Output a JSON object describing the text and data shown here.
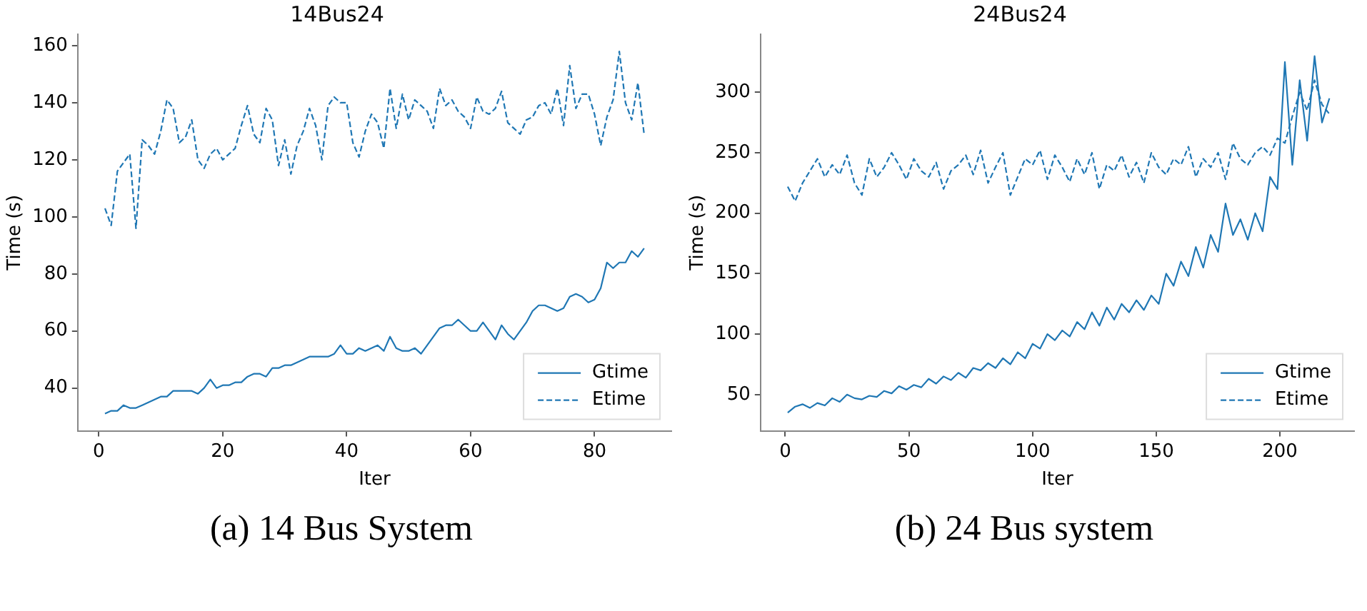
{
  "chart_data": [
    {
      "type": "line",
      "title": "14Bus24",
      "xlabel": "Iter",
      "ylabel": "Time (s)",
      "annotations": [
        "(a) 14 Bus System"
      ],
      "x": [
        1,
        2,
        3,
        4,
        5,
        6,
        7,
        8,
        9,
        10,
        11,
        12,
        13,
        14,
        15,
        16,
        17,
        18,
        19,
        20,
        21,
        22,
        23,
        24,
        25,
        26,
        27,
        28,
        29,
        30,
        31,
        32,
        33,
        34,
        35,
        36,
        37,
        38,
        39,
        40,
        41,
        42,
        43,
        44,
        45,
        46,
        47,
        48,
        49,
        50,
        51,
        52,
        53,
        54,
        55,
        56,
        57,
        58,
        59,
        60,
        61,
        62,
        63,
        64,
        65,
        66,
        67,
        68,
        69,
        70,
        71,
        72,
        73,
        74,
        75,
        76,
        77,
        78,
        79,
        80,
        81,
        82,
        83,
        84,
        85,
        86,
        87,
        88
      ],
      "series": [
        {
          "name": "Gtime",
          "color": "#1f77b4",
          "line_style": "solid",
          "values": [
            31,
            32,
            32,
            34,
            33,
            33,
            34,
            35,
            36,
            37,
            37,
            39,
            39,
            39,
            39,
            38,
            40,
            43,
            40,
            41,
            41,
            42,
            42,
            44,
            45,
            45,
            44,
            47,
            47,
            48,
            48,
            49,
            50,
            51,
            51,
            51,
            51,
            52,
            55,
            52,
            52,
            54,
            53,
            54,
            55,
            53,
            58,
            54,
            53,
            53,
            54,
            52,
            55,
            58,
            61,
            62,
            62,
            64,
            62,
            60,
            60,
            63,
            60,
            57,
            62,
            59,
            57,
            60,
            63,
            67,
            69,
            69,
            68,
            67,
            68,
            72,
            73,
            72,
            70,
            71,
            75,
            84,
            82,
            84,
            84,
            88,
            86,
            89
          ]
        },
        {
          "name": "Etime",
          "color": "#1f77b4",
          "line_style": "dashed",
          "values": [
            103,
            97,
            116,
            119,
            122,
            96,
            127,
            125,
            122,
            130,
            141,
            138,
            126,
            128,
            134,
            120,
            117,
            122,
            124,
            120,
            122,
            124,
            132,
            139,
            129,
            126,
            138,
            134,
            118,
            127,
            115,
            125,
            130,
            138,
            132,
            120,
            139,
            142,
            140,
            140,
            126,
            121,
            130,
            136,
            133,
            124,
            145,
            131,
            143,
            134,
            141,
            139,
            137,
            131,
            145,
            139,
            141,
            137,
            135,
            131,
            142,
            137,
            136,
            138,
            144,
            133,
            131,
            129,
            134,
            135,
            139,
            140,
            136,
            145,
            132,
            153,
            138,
            143,
            143,
            136,
            125,
            135,
            141,
            158,
            140,
            134,
            147,
            129
          ]
        }
      ],
      "xlim": [
        -3.4,
        92.4
      ],
      "xticks": [
        0,
        20,
        40,
        60,
        80
      ],
      "ylim": [
        25,
        164
      ],
      "yticks": [
        40,
        60,
        80,
        100,
        120,
        140,
        160
      ],
      "grid": false,
      "legend": "bottom right",
      "marker": "none"
    },
    {
      "type": "line",
      "title": "24Bus24",
      "xlabel": "Iter",
      "ylabel": "Time (s)",
      "annotations": [
        "(b) 24 Bus system"
      ],
      "x": [
        1,
        4,
        7,
        10,
        13,
        16,
        19,
        22,
        25,
        28,
        31,
        34,
        37,
        40,
        43,
        46,
        49,
        52,
        55,
        58,
        61,
        64,
        67,
        70,
        73,
        76,
        79,
        82,
        85,
        88,
        91,
        94,
        97,
        100,
        103,
        106,
        109,
        112,
        115,
        118,
        121,
        124,
        127,
        130,
        133,
        136,
        139,
        142,
        145,
        148,
        151,
        154,
        157,
        160,
        163,
        166,
        169,
        172,
        175,
        178,
        181,
        184,
        187,
        190,
        193,
        196,
        199,
        202,
        205,
        208,
        211,
        214,
        217,
        220
      ],
      "series": [
        {
          "name": "Gtime",
          "color": "#1f77b4",
          "line_style": "solid",
          "values": [
            35,
            40,
            42,
            39,
            43,
            41,
            47,
            44,
            50,
            47,
            46,
            49,
            48,
            53,
            51,
            57,
            54,
            58,
            56,
            63,
            59,
            65,
            62,
            68,
            64,
            72,
            70,
            76,
            72,
            80,
            75,
            85,
            80,
            92,
            88,
            100,
            95,
            103,
            98,
            110,
            104,
            118,
            107,
            122,
            112,
            125,
            118,
            128,
            120,
            132,
            125,
            150,
            140,
            160,
            148,
            172,
            155,
            182,
            168,
            208,
            182,
            195,
            178,
            200,
            185,
            230,
            220,
            325,
            240,
            310,
            260,
            330,
            275,
            295
          ]
        },
        {
          "name": "Etime",
          "color": "#1f77b4",
          "line_style": "dashed",
          "values": [
            222,
            210,
            225,
            235,
            245,
            230,
            240,
            232,
            248,
            225,
            215,
            245,
            230,
            238,
            250,
            240,
            228,
            245,
            235,
            230,
            242,
            220,
            235,
            240,
            248,
            232,
            252,
            225,
            238,
            250,
            215,
            230,
            245,
            240,
            252,
            228,
            248,
            238,
            226,
            245,
            232,
            250,
            220,
            240,
            235,
            248,
            230,
            242,
            225,
            250,
            238,
            232,
            245,
            240,
            255,
            230,
            245,
            238,
            250,
            228,
            258,
            245,
            240,
            250,
            255,
            248,
            262,
            258,
            280,
            300,
            285,
            310,
            290,
            282
          ]
        }
      ],
      "xlim": [
        -10,
        230
      ],
      "xticks": [
        0,
        50,
        100,
        150,
        200
      ],
      "ylim": [
        20,
        348
      ],
      "yticks": [
        50,
        100,
        150,
        200,
        250,
        300
      ],
      "grid": false,
      "legend": "bottom right",
      "marker": "none"
    }
  ]
}
